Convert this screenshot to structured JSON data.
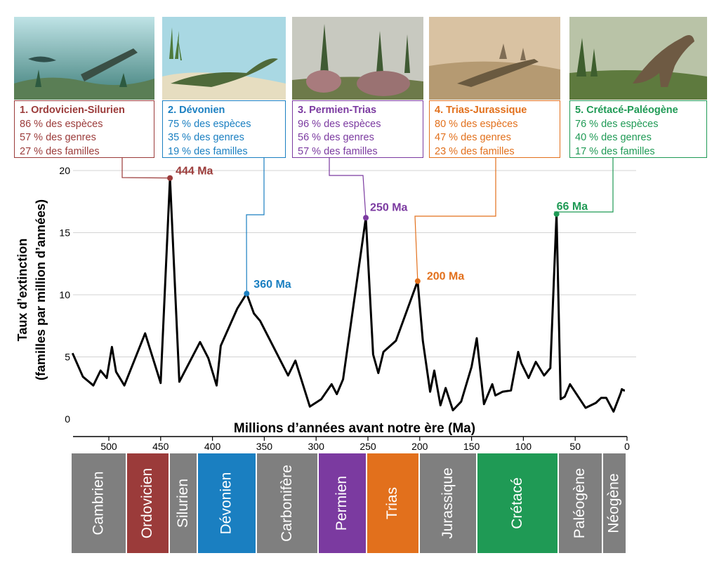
{
  "colors": {
    "ordovicien": "#9b3b3a",
    "devonien": "#1a7fc1",
    "permien": "#7b3aa0",
    "trias": "#e2701c",
    "cretace": "#1f9a55",
    "grey": "#7f7f7f",
    "line": "#000000"
  },
  "events": [
    {
      "id": "ord",
      "title": "1. Ordovicien-Silurien",
      "especes": "86 % des espèces",
      "genres": "57 % des genres",
      "familles": "27 % des familles",
      "peak_label": "444 Ma",
      "peak_ma": 441,
      "peak_rate": 19.4,
      "color": "#9b3b3a"
    },
    {
      "id": "dev",
      "title": "2. Dévonien",
      "especes": "75 % des espèces",
      "genres": "35 % des genres",
      "familles": "19 % des familles",
      "peak_label": "360 Ma",
      "peak_ma": 367,
      "peak_rate": 10.1,
      "color": "#1a7fc1"
    },
    {
      "id": "per",
      "title": "3. Permien-Trias",
      "especes": "96 % des espèces",
      "genres": "56 % des genres",
      "familles": "57 % des familles",
      "peak_label": "250 Ma",
      "peak_ma": 252,
      "peak_rate": 16.2,
      "color": "#7b3aa0"
    },
    {
      "id": "tri",
      "title": "4. Trias-Jurassique",
      "especes": "80 % des espèces",
      "genres": "47 % des genres",
      "familles": "23 % des familles",
      "peak_label": "200 Ma",
      "peak_ma": 202,
      "peak_rate": 11.1,
      "color": "#e2701c"
    },
    {
      "id": "cre",
      "title": "5. Crétacé-Paléogène",
      "especes": "76 % des espèces",
      "genres": "40 % des genres",
      "familles": "17 % des familles",
      "peak_label": "66 Ma",
      "peak_ma": 68,
      "peak_rate": 16.5,
      "color": "#1f9a55"
    }
  ],
  "chart_data": {
    "type": "line",
    "title": "",
    "xlabel": "Millions d’années avant notre ère (Ma)",
    "ylabel_line1": "Taux d’extinction",
    "ylabel_line2": "(familles par million d’années)",
    "xlim": [
      535,
      0
    ],
    "ylim": [
      0,
      20
    ],
    "xticks": [
      500,
      450,
      400,
      350,
      300,
      250,
      200,
      150,
      100,
      50,
      0
    ],
    "yticks": [
      0,
      5,
      10,
      15,
      20
    ],
    "grid": true,
    "series": [
      {
        "name": "Taux d’extinction",
        "x": [
          535,
          525,
          515,
          508,
          502,
          497,
          493,
          485,
          465,
          450,
          441,
          432,
          412,
          404,
          396,
          392,
          376,
          367,
          360,
          354,
          327,
          320,
          306,
          295,
          285,
          280,
          274,
          252,
          245,
          240,
          235,
          223,
          202,
          197,
          190,
          186,
          180,
          175,
          168,
          160,
          150,
          145,
          138,
          130,
          127,
          120,
          112,
          105,
          102,
          95,
          88,
          80,
          74,
          68,
          64,
          60,
          55,
          40,
          30,
          25,
          20,
          13,
          6,
          5,
          3,
          2
        ],
        "y": [
          5.3,
          3.4,
          2.7,
          3.9,
          3.3,
          5.8,
          3.8,
          2.7,
          6.9,
          2.9,
          19.4,
          3.0,
          6.2,
          4.9,
          2.7,
          5.9,
          8.9,
          10.1,
          8.5,
          7.9,
          3.5,
          4.7,
          1.0,
          1.6,
          2.8,
          2.0,
          3.2,
          16.2,
          5.2,
          3.7,
          5.4,
          6.3,
          11.1,
          6.3,
          2.2,
          3.9,
          1.1,
          2.5,
          0.7,
          1.4,
          4.2,
          6.5,
          1.2,
          2.8,
          1.9,
          2.2,
          2.3,
          5.4,
          4.5,
          3.3,
          4.6,
          3.5,
          4.1,
          16.5,
          1.6,
          1.8,
          2.8,
          0.9,
          1.3,
          1.7,
          1.7,
          0.6,
          2.1,
          2.4,
          2.3,
          2.3
        ]
      }
    ],
    "peak_points": [
      {
        "label": "444 Ma",
        "x": 441,
        "y": 19.4
      },
      {
        "label": "360 Ma",
        "x": 367,
        "y": 10.1
      },
      {
        "label": "250 Ma",
        "x": 252,
        "y": 16.2
      },
      {
        "label": "200 Ma",
        "x": 202,
        "y": 11.1
      },
      {
        "label": "66 Ma",
        "x": 68,
        "y": 16.5
      }
    ]
  },
  "periods": [
    {
      "name": "Cambrien",
      "start": 541,
      "end": 485,
      "color": "#7f7f7f"
    },
    {
      "name": "Ordovicien",
      "start": 485,
      "end": 443,
      "color": "#9b3b3a"
    },
    {
      "name": "Silurien",
      "start": 443,
      "end": 416,
      "color": "#7f7f7f"
    },
    {
      "name": "Dévonien",
      "start": 416,
      "end": 359,
      "color": "#1a7fc1"
    },
    {
      "name": "Carbonifère",
      "start": 359,
      "end": 299,
      "color": "#7f7f7f"
    },
    {
      "name": "Permien",
      "start": 299,
      "end": 252,
      "color": "#7b3aa0"
    },
    {
      "name": "Trias",
      "start": 252,
      "end": 201,
      "color": "#e2701c"
    },
    {
      "name": "Jurassique",
      "start": 201,
      "end": 145,
      "color": "#7f7f7f"
    },
    {
      "name": "Crétacé",
      "start": 145,
      "end": 66,
      "color": "#1f9a55"
    },
    {
      "name": "Paléogène",
      "start": 66,
      "end": 23,
      "color": "#7f7f7f"
    },
    {
      "name": "Néogène",
      "start": 23,
      "end": 0,
      "color": "#7f7f7f"
    }
  ]
}
